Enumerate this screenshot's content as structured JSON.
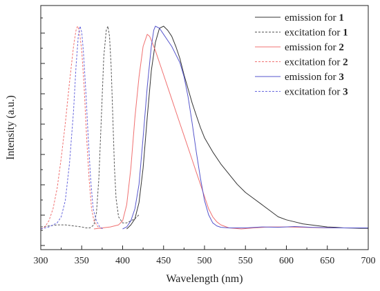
{
  "chart_data": {
    "type": "line",
    "title": "",
    "xlabel": "Wavelength (nm)",
    "ylabel": "Intensity (a.u.)",
    "xlim": [
      300,
      700
    ],
    "ylim": [
      0,
      1.1
    ],
    "x_ticks": [
      300,
      350,
      400,
      450,
      500,
      550,
      600,
      650,
      700
    ],
    "y_tick_labels": false,
    "grid": false,
    "legend_position": "top-right",
    "series": [
      {
        "name_text": "emission for ",
        "name_bold": "1",
        "color": "#333333",
        "dash": "solid",
        "points": [
          [
            405,
            0.0
          ],
          [
            410,
            0.02
          ],
          [
            415,
            0.05
          ],
          [
            420,
            0.13
          ],
          [
            425,
            0.3
          ],
          [
            430,
            0.55
          ],
          [
            435,
            0.78
          ],
          [
            440,
            0.92
          ],
          [
            445,
            0.99
          ],
          [
            450,
            1.0
          ],
          [
            455,
            0.98
          ],
          [
            460,
            0.95
          ],
          [
            465,
            0.9
          ],
          [
            470,
            0.84
          ],
          [
            475,
            0.76
          ],
          [
            480,
            0.69
          ],
          [
            485,
            0.62
          ],
          [
            490,
            0.56
          ],
          [
            495,
            0.5
          ],
          [
            500,
            0.45
          ],
          [
            510,
            0.38
          ],
          [
            520,
            0.32
          ],
          [
            530,
            0.27
          ],
          [
            540,
            0.22
          ],
          [
            550,
            0.18
          ],
          [
            560,
            0.15
          ],
          [
            570,
            0.12
          ],
          [
            580,
            0.09
          ],
          [
            590,
            0.06
          ],
          [
            600,
            0.045
          ],
          [
            610,
            0.035
          ],
          [
            620,
            0.025
          ],
          [
            630,
            0.02
          ],
          [
            640,
            0.015
          ],
          [
            650,
            0.01
          ],
          [
            660,
            0.008
          ],
          [
            670,
            0.005
          ],
          [
            680,
            0.004
          ],
          [
            690,
            0.003
          ],
          [
            700,
            0.003
          ]
        ]
      },
      {
        "name_text": "excitation for ",
        "name_bold": "1",
        "color": "#555555",
        "dash": "dashed",
        "points": [
          [
            300,
            0.01
          ],
          [
            310,
            0.015
          ],
          [
            320,
            0.02
          ],
          [
            330,
            0.02
          ],
          [
            340,
            0.015
          ],
          [
            350,
            0.01
          ],
          [
            355,
            0.005
          ],
          [
            360,
            0.005
          ],
          [
            365,
            0.02
          ],
          [
            368,
            0.08
          ],
          [
            371,
            0.25
          ],
          [
            374,
            0.55
          ],
          [
            377,
            0.85
          ],
          [
            380,
            0.98
          ],
          [
            382,
            1.0
          ],
          [
            384,
            0.95
          ],
          [
            386,
            0.8
          ],
          [
            388,
            0.55
          ],
          [
            390,
            0.3
          ],
          [
            392,
            0.15
          ],
          [
            395,
            0.06
          ],
          [
            400,
            0.03
          ],
          [
            405,
            0.03
          ],
          [
            410,
            0.04
          ],
          [
            415,
            0.05
          ],
          [
            420,
            0.07
          ]
        ]
      },
      {
        "name_text": "emission for ",
        "name_bold": "2",
        "color": "#f07070",
        "dash": "solid",
        "points": [
          [
            365,
            0.0
          ],
          [
            375,
            0.005
          ],
          [
            385,
            0.01
          ],
          [
            395,
            0.02
          ],
          [
            400,
            0.04
          ],
          [
            405,
            0.12
          ],
          [
            410,
            0.3
          ],
          [
            415,
            0.55
          ],
          [
            420,
            0.75
          ],
          [
            425,
            0.9
          ],
          [
            430,
            0.96
          ],
          [
            433,
            0.95
          ],
          [
            435,
            0.93
          ],
          [
            440,
            0.88
          ],
          [
            445,
            0.82
          ],
          [
            450,
            0.76
          ],
          [
            455,
            0.7
          ],
          [
            460,
            0.64
          ],
          [
            465,
            0.58
          ],
          [
            470,
            0.52
          ],
          [
            475,
            0.46
          ],
          [
            480,
            0.4
          ],
          [
            485,
            0.34
          ],
          [
            490,
            0.28
          ],
          [
            495,
            0.22
          ],
          [
            500,
            0.16
          ],
          [
            505,
            0.1
          ],
          [
            510,
            0.06
          ],
          [
            515,
            0.035
          ],
          [
            520,
            0.02
          ],
          [
            530,
            0.005
          ],
          [
            545,
            0.0
          ],
          [
            560,
            0.005
          ],
          [
            580,
            0.01
          ],
          [
            600,
            0.01
          ],
          [
            620,
            0.008
          ],
          [
            640,
            0.006
          ],
          [
            660,
            0.005
          ],
          [
            680,
            0.005
          ],
          [
            700,
            0.005
          ]
        ]
      },
      {
        "name_text": "excitation for ",
        "name_bold": "2",
        "color": "#f07070",
        "dash": "dashed",
        "points": [
          [
            300,
            0.0
          ],
          [
            305,
            0.01
          ],
          [
            310,
            0.04
          ],
          [
            315,
            0.1
          ],
          [
            320,
            0.2
          ],
          [
            325,
            0.35
          ],
          [
            330,
            0.52
          ],
          [
            335,
            0.72
          ],
          [
            340,
            0.9
          ],
          [
            343,
            0.98
          ],
          [
            345,
            1.0
          ],
          [
            347,
            0.98
          ],
          [
            350,
            0.88
          ],
          [
            353,
            0.7
          ],
          [
            356,
            0.45
          ],
          [
            359,
            0.25
          ],
          [
            362,
            0.1
          ],
          [
            365,
            0.04
          ],
          [
            370,
            0.01
          ],
          [
            375,
            0.0
          ]
        ]
      },
      {
        "name_text": "emission for ",
        "name_bold": "3",
        "color": "#5555cc",
        "dash": "solid",
        "points": [
          [
            400,
            0.0
          ],
          [
            405,
            0.01
          ],
          [
            410,
            0.04
          ],
          [
            415,
            0.1
          ],
          [
            420,
            0.22
          ],
          [
            425,
            0.45
          ],
          [
            430,
            0.7
          ],
          [
            435,
            0.9
          ],
          [
            438,
            0.98
          ],
          [
            440,
            1.0
          ],
          [
            445,
            0.99
          ],
          [
            450,
            0.96
          ],
          [
            455,
            0.93
          ],
          [
            460,
            0.9
          ],
          [
            465,
            0.86
          ],
          [
            470,
            0.82
          ],
          [
            475,
            0.75
          ],
          [
            480,
            0.65
          ],
          [
            485,
            0.52
          ],
          [
            490,
            0.38
          ],
          [
            495,
            0.25
          ],
          [
            500,
            0.14
          ],
          [
            505,
            0.07
          ],
          [
            510,
            0.03
          ],
          [
            515,
            0.015
          ],
          [
            520,
            0.008
          ],
          [
            530,
            0.005
          ],
          [
            550,
            0.005
          ],
          [
            570,
            0.01
          ],
          [
            590,
            0.008
          ],
          [
            610,
            0.012
          ],
          [
            630,
            0.008
          ],
          [
            650,
            0.006
          ],
          [
            670,
            0.005
          ],
          [
            690,
            0.005
          ],
          [
            700,
            0.005
          ]
        ]
      },
      {
        "name_text": "excitation for ",
        "name_bold": "3",
        "color": "#6666dd",
        "dash": "dashed",
        "points": [
          [
            300,
            0.0
          ],
          [
            310,
            0.01
          ],
          [
            320,
            0.03
          ],
          [
            325,
            0.06
          ],
          [
            330,
            0.14
          ],
          [
            335,
            0.32
          ],
          [
            340,
            0.58
          ],
          [
            343,
            0.8
          ],
          [
            346,
            0.96
          ],
          [
            348,
            1.0
          ],
          [
            350,
            0.97
          ],
          [
            352,
            0.88
          ],
          [
            355,
            0.68
          ],
          [
            358,
            0.45
          ],
          [
            361,
            0.24
          ],
          [
            364,
            0.1
          ],
          [
            368,
            0.04
          ],
          [
            372,
            0.01
          ],
          [
            376,
            0.0
          ]
        ]
      }
    ]
  }
}
